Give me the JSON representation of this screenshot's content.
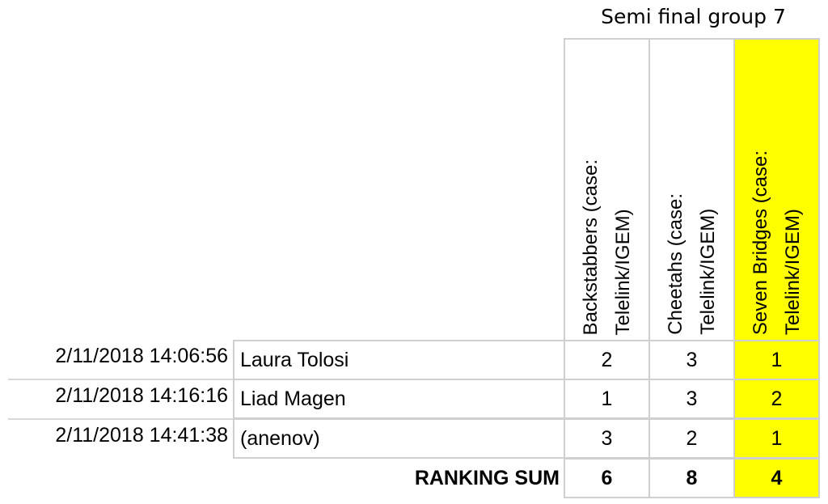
{
  "title": "Semi final group 7",
  "columns": [
    {
      "label": "Backstabbers (case:\nTelelink/IGEM)",
      "highlight": false
    },
    {
      "label": "Cheetahs (case:\nTelelink/IGEM)",
      "highlight": false
    },
    {
      "label": "Seven Bridges (case:\nTelelink/IGEM)",
      "highlight": true
    }
  ],
  "highlight_color": "#ffff00",
  "rows": [
    {
      "timestamp": "2/11/2018 14:06:56",
      "name": "Laura Tolosi",
      "ranks": [
        "2",
        "3",
        "1"
      ]
    },
    {
      "timestamp": "2/11/2018 14:16:16",
      "name": "Liad Magen",
      "ranks": [
        "1",
        "3",
        "2"
      ]
    },
    {
      "timestamp": "2/11/2018 14:41:38",
      "name": "(anenov)",
      "ranks": [
        "3",
        "2",
        "1"
      ]
    }
  ],
  "sum": {
    "label": "RANKING SUM",
    "values": [
      "6",
      "8",
      "4"
    ]
  }
}
